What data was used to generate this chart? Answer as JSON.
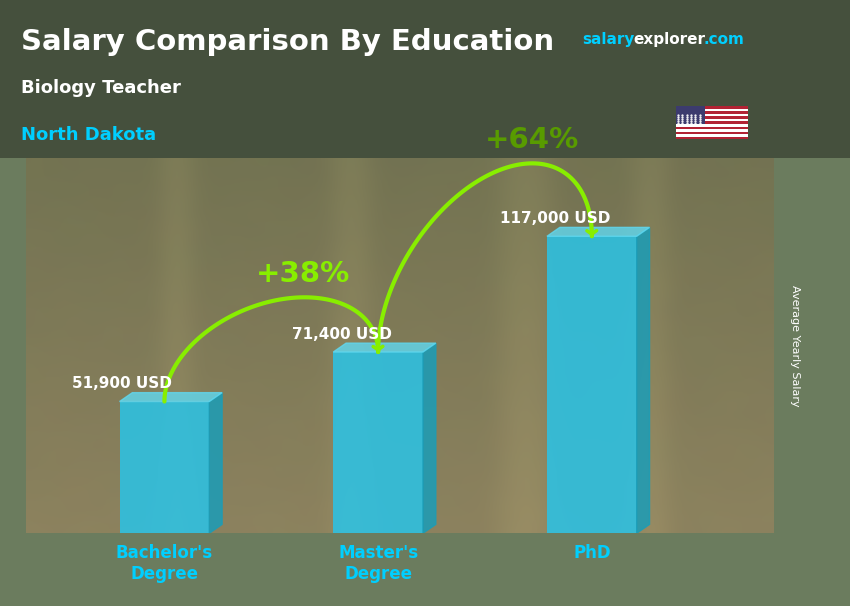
{
  "title": "Salary Comparison By Education",
  "subtitle": "Biology Teacher",
  "location": "North Dakota",
  "ylabel": "Average Yearly Salary",
  "categories": [
    "Bachelor's\nDegree",
    "Master's\nDegree",
    "PhD"
  ],
  "values": [
    51900,
    71400,
    117000
  ],
  "value_labels": [
    "51,900 USD",
    "71,400 USD",
    "117,000 USD"
  ],
  "pct_labels": [
    "+38%",
    "+64%"
  ],
  "bar_color_face": "#29C4E8",
  "bar_color_side": "#1A9DB8",
  "bar_color_top": "#60D8F0",
  "bar_alpha": 0.85,
  "title_color": "#FFFFFF",
  "subtitle_color": "#FFFFFF",
  "location_color": "#00CFFF",
  "value_label_color": "#FFFFFF",
  "pct_color": "#88EE00",
  "arrow_color": "#88EE00",
  "xtick_color": "#00CFFF",
  "ylabel_color": "#FFFFFF",
  "site_salary_color": "#00CFFF",
  "site_explorer_color": "#FFFFFF",
  "site_com_color": "#00CFFF",
  "background_color": "#6B7C5E",
  "figsize": [
    8.5,
    6.06
  ],
  "dpi": 100,
  "ylim": [
    0,
    148000
  ],
  "bar_width": 0.42,
  "x_positions": [
    1,
    2,
    3
  ],
  "xlim": [
    0.35,
    3.85
  ]
}
